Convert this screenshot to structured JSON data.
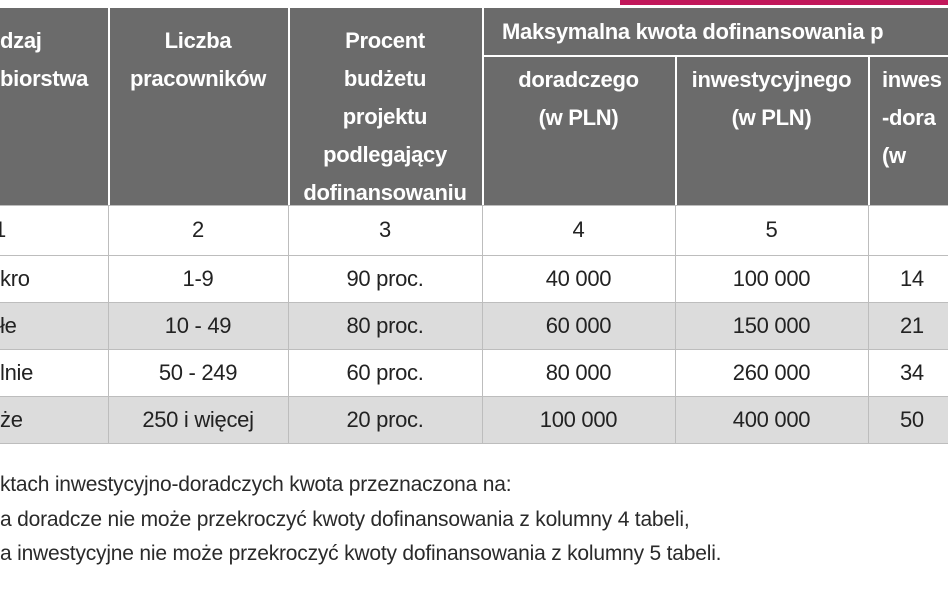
{
  "table": {
    "header": {
      "columns": [
        [
          "dzaj",
          "biorstwa"
        ],
        [
          "Liczba",
          "pracowników"
        ],
        [
          "Procent",
          "budżetu",
          "projektu",
          "podlegający",
          "dofinansowaniu"
        ]
      ],
      "group": "Maksymalna kwota dofinansowania p",
      "subcolumns": [
        [
          "doradczego",
          "(w PLN)"
        ],
        [
          "inwestycyjnego",
          "(w PLN)"
        ],
        [
          "inwes",
          "-dora",
          "(w"
        ]
      ]
    },
    "column_numbers": [
      "1",
      "2",
      "3",
      "4",
      "5"
    ],
    "rows": [
      [
        "kro",
        "1-9",
        "90 proc.",
        "40 000",
        "100 000",
        "14"
      ],
      [
        "łe",
        "10 - 49",
        "80 proc.",
        "60 000",
        "150 000",
        "21"
      ],
      [
        "lnie",
        "50 - 249",
        "60 proc.",
        "80 000",
        "260 000",
        "34"
      ],
      [
        "że",
        "250 i więcej",
        "20 proc.",
        "100 000",
        "400 000",
        "50"
      ]
    ]
  },
  "notes": [
    "ktach inwestycyjno-doradczych kwota przeznaczona na:",
    "a doradcze nie może przekroczyć kwoty dofinansowania z kolumny 4 tabeli,",
    "a inwestycyjne nie może przekroczyć kwoty dofinansowania z kolumny 5 tabeli."
  ]
}
